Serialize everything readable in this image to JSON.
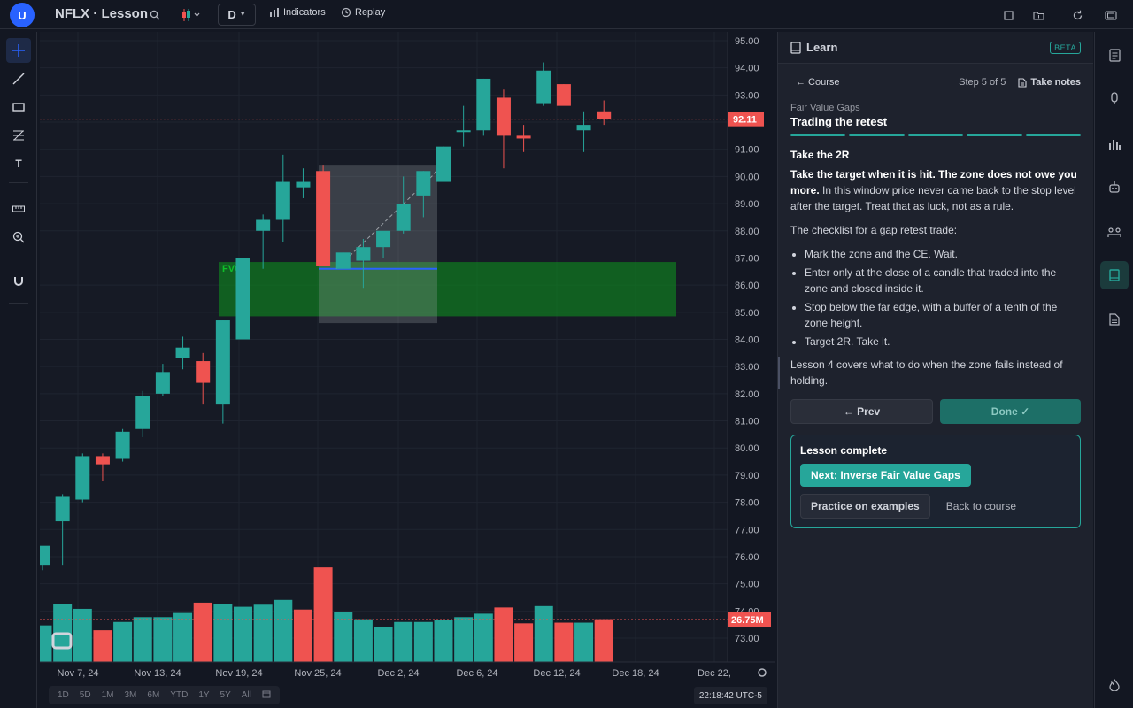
{
  "topbar": {
    "avatar": "U",
    "symbol": "NFLX · Lesson",
    "interval": "D",
    "indicators_label": "Indicators",
    "replay_label": "Replay"
  },
  "chart_data": {
    "type": "candlestick",
    "ylim": [
      72.5,
      95.5
    ],
    "yticks": [
      "95.00",
      "94.00",
      "93.00",
      "92.00",
      "91.00",
      "90.00",
      "89.00",
      "88.00",
      "87.00",
      "86.00",
      "85.00",
      "84.00",
      "83.00",
      "82.00",
      "81.00",
      "80.00",
      "79.00",
      "78.00",
      "77.00",
      "76.00",
      "75.00",
      "74.00",
      "73.00"
    ],
    "xticks": [
      "Nov 7, 24",
      "Nov 13, 24",
      "Nov 19, 24",
      "Nov 25, 24",
      "Dec 2, 24",
      "Dec 6, 24",
      "Dec 12, 24",
      "Dec 18, 24",
      "Dec 22,"
    ],
    "last_price_label": "92.11",
    "last_price": 92.11,
    "volume_label": "26.75M",
    "fvg_label": "FVG",
    "fvg_zone": [
      84.85,
      86.85
    ],
    "candles": [
      {
        "o": 75.7,
        "h": 76.2,
        "l": 75.5,
        "c": 76.4
      },
      {
        "o": 77.3,
        "h": 78.3,
        "l": 75.7,
        "c": 78.2
      },
      {
        "o": 78.1,
        "h": 79.8,
        "l": 78.0,
        "c": 79.7
      },
      {
        "o": 79.7,
        "h": 79.8,
        "l": 78.8,
        "c": 79.4
      },
      {
        "o": 79.6,
        "h": 80.7,
        "l": 79.5,
        "c": 80.6
      },
      {
        "o": 80.7,
        "h": 82.1,
        "l": 80.4,
        "c": 81.9
      },
      {
        "o": 82.0,
        "h": 83.1,
        "l": 81.9,
        "c": 82.8
      },
      {
        "o": 83.3,
        "h": 84.1,
        "l": 82.9,
        "c": 83.7
      },
      {
        "o": 83.2,
        "h": 83.5,
        "l": 81.6,
        "c": 82.4
      },
      {
        "o": 81.6,
        "h": 84.7,
        "l": 80.9,
        "c": 84.7
      },
      {
        "o": 84.0,
        "h": 87.2,
        "l": 84.0,
        "c": 87.0
      },
      {
        "o": 88.0,
        "h": 88.6,
        "l": 86.6,
        "c": 88.4
      },
      {
        "o": 88.4,
        "h": 90.8,
        "l": 87.6,
        "c": 89.8
      },
      {
        "o": 89.6,
        "h": 90.3,
        "l": 89.2,
        "c": 89.8
      },
      {
        "o": 90.2,
        "h": 90.4,
        "l": 86.7,
        "c": 86.7
      },
      {
        "o": 86.6,
        "h": 87.2,
        "l": 86.6,
        "c": 87.2
      },
      {
        "o": 86.9,
        "h": 87.7,
        "l": 85.9,
        "c": 87.4
      },
      {
        "o": 87.4,
        "h": 87.8,
        "l": 87.0,
        "c": 88.0
      },
      {
        "o": 88.0,
        "h": 90.0,
        "l": 87.9,
        "c": 89.0
      },
      {
        "o": 89.3,
        "h": 90.2,
        "l": 88.5,
        "c": 90.2
      },
      {
        "o": 89.8,
        "h": 91.1,
        "l": 89.8,
        "c": 91.1
      },
      {
        "o": 91.7,
        "h": 92.6,
        "l": 91.1,
        "c": 91.7
      },
      {
        "o": 91.7,
        "h": 93.6,
        "l": 91.5,
        "c": 93.6
      },
      {
        "o": 92.9,
        "h": 93.2,
        "l": 90.3,
        "c": 91.5
      },
      {
        "o": 91.5,
        "h": 91.9,
        "l": 90.9,
        "c": 91.4
      },
      {
        "o": 92.7,
        "h": 94.2,
        "l": 92.6,
        "c": 93.9
      },
      {
        "o": 93.4,
        "h": 93.4,
        "l": 92.7,
        "c": 92.6
      },
      {
        "o": 91.7,
        "h": 92.4,
        "l": 90.9,
        "c": 91.9
      },
      {
        "o": 92.4,
        "h": 92.8,
        "l": 91.9,
        "c": 92.1
      }
    ],
    "volumes": [
      {
        "v": 0.53,
        "up": true
      },
      {
        "v": 0.84,
        "up": true
      },
      {
        "v": 0.77,
        "up": true
      },
      {
        "v": 0.46,
        "up": false
      },
      {
        "v": 0.58,
        "up": true
      },
      {
        "v": 0.65,
        "up": true
      },
      {
        "v": 0.65,
        "up": true
      },
      {
        "v": 0.71,
        "up": true
      },
      {
        "v": 0.86,
        "up": false
      },
      {
        "v": 0.84,
        "up": true
      },
      {
        "v": 0.8,
        "up": true
      },
      {
        "v": 0.83,
        "up": true
      },
      {
        "v": 0.9,
        "up": true
      },
      {
        "v": 0.76,
        "up": false
      },
      {
        "v": 1.37,
        "up": false
      },
      {
        "v": 0.73,
        "up": true
      },
      {
        "v": 0.62,
        "up": true
      },
      {
        "v": 0.5,
        "up": true
      },
      {
        "v": 0.58,
        "up": true
      },
      {
        "v": 0.58,
        "up": true
      },
      {
        "v": 0.61,
        "up": true
      },
      {
        "v": 0.65,
        "up": true
      },
      {
        "v": 0.7,
        "up": true
      },
      {
        "v": 0.79,
        "up": false
      },
      {
        "v": 0.56,
        "up": false
      },
      {
        "v": 0.81,
        "up": true
      },
      {
        "v": 0.57,
        "up": false
      },
      {
        "v": 0.57,
        "up": true
      },
      {
        "v": 0.62,
        "up": false
      }
    ]
  },
  "bottombar": {
    "ranges": [
      "1D",
      "5D",
      "1M",
      "3M",
      "6M",
      "YTD",
      "1Y",
      "5Y",
      "All"
    ],
    "clock": "22:18:42 UTC-5"
  },
  "learn": {
    "title": "Learn",
    "beta": "BETA",
    "back_course": "← Course",
    "step": "Step 5 of 5",
    "take_notes": "Take notes",
    "lesson_sub": "Fair Value Gaps",
    "lesson_title": "Trading the retest",
    "progress_segments": 5,
    "heading": "Take the 2R",
    "p1_bold": "Take the target when it is hit. The zone does not owe you more.",
    "p1_rest": " In this window price never came back to the stop level after the target. Treat that as luck, not as a rule.",
    "p2": "The checklist for a gap retest trade:",
    "checklist": [
      "Mark the zone and the CE. Wait.",
      "Enter only at the close of a candle that traded into the zone and closed inside it.",
      "Stop below the far edge, with a buffer of a tenth of the zone height.",
      "Target 2R. Take it."
    ],
    "note": "Lesson 4 covers what to do when the zone fails instead of holding.",
    "prev_label": "← Prev",
    "done_label": "Done ✓",
    "complete_title": "Lesson complete",
    "next_label": "Next: Inverse Fair Value Gaps",
    "practice_label": "Practice on examples",
    "back_to_course_label": "Back to course"
  },
  "colors": {
    "up": "#26a69a",
    "down": "#ef5350",
    "accent": "#2962ff",
    "teal": "#26a69a"
  }
}
